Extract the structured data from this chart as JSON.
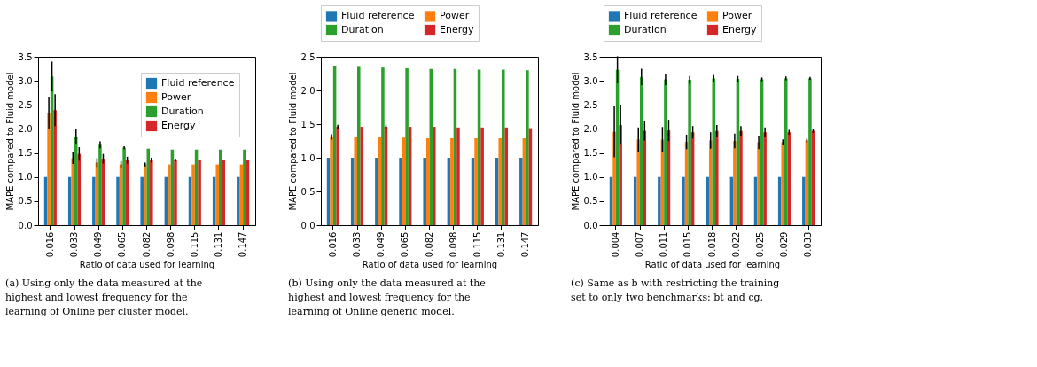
{
  "chart_data": [
    {
      "type": "bar",
      "xlabel": "Ratio of data used for learning",
      "ylabel": "MAPE compared to Fluid model",
      "categories": [
        "0.016",
        "0.033",
        "0.049",
        "0.065",
        "0.082",
        "0.098",
        "0.115",
        "0.131",
        "0.147"
      ],
      "series": [
        {
          "name": "Fluid reference",
          "color": "#1f77b4",
          "values": [
            1.0,
            1.0,
            1.0,
            1.0,
            1.0,
            1.0,
            1.0,
            1.0,
            1.0
          ]
        },
        {
          "name": "Power",
          "color": "#ff7f0e",
          "values": [
            2.33,
            1.39,
            1.3,
            1.26,
            1.26,
            1.26,
            1.26,
            1.26,
            1.26
          ],
          "errors": [
            0.34,
            0.12,
            0.09,
            0.07,
            0.04,
            null,
            null,
            null,
            null
          ]
        },
        {
          "name": "Duration",
          "color": "#2ca02c",
          "values": [
            3.09,
            1.84,
            1.67,
            1.61,
            1.59,
            1.57,
            1.57,
            1.57,
            1.57
          ],
          "errors": [
            0.31,
            0.16,
            0.07,
            0.03,
            null,
            null,
            null,
            null,
            null
          ]
        },
        {
          "name": "Energy",
          "color": "#d62728",
          "values": [
            2.39,
            1.48,
            1.38,
            1.35,
            1.35,
            1.35,
            1.35,
            1.35,
            1.35
          ],
          "errors": [
            0.33,
            0.14,
            0.1,
            0.07,
            0.05,
            0.03,
            null,
            null,
            null
          ]
        }
      ],
      "ylim": [
        0,
        3.5
      ],
      "yticks": [
        {
          "value": 0,
          "label": "0.0"
        },
        0.5,
        {
          "value": 1,
          "label": "1.0"
        },
        1.5,
        {
          "value": 2,
          "label": "2.0"
        },
        2.5,
        {
          "value": 3,
          "label": "3.0"
        },
        3.5
      ],
      "grid": false,
      "legend": "top right",
      "annotations": [
        "(a) Using only the data measured at the highest and lowest frequency for the learning of Online per cluster model."
      ]
    },
    {
      "type": "bar",
      "xlabel": "Ratio of data used for learning",
      "ylabel": "MAPE compared to Fluid model",
      "categories": [
        "0.016",
        "0.033",
        "0.049",
        "0.065",
        "0.082",
        "0.098",
        "0.115",
        "0.131",
        "0.147"
      ],
      "series": [
        {
          "name": "Fluid reference",
          "color": "#1f77b4",
          "values": [
            1.0,
            1.0,
            1.0,
            1.0,
            1.0,
            1.0,
            1.0,
            1.0,
            1.0
          ]
        },
        {
          "name": "Power",
          "color": "#ff7f0e",
          "values": [
            1.31,
            1.31,
            1.31,
            1.3,
            1.29,
            1.29,
            1.29,
            1.29,
            1.29
          ],
          "errors": [
            0.04,
            null,
            null,
            null,
            null,
            null,
            null,
            null,
            null
          ]
        },
        {
          "name": "Duration",
          "color": "#2ca02c",
          "values": [
            2.37,
            2.35,
            2.34,
            2.33,
            2.32,
            2.32,
            2.31,
            2.31,
            2.3
          ]
        },
        {
          "name": "Energy",
          "color": "#d62728",
          "values": [
            1.46,
            1.46,
            1.46,
            1.46,
            1.46,
            1.45,
            1.45,
            1.45,
            1.44
          ],
          "errors": [
            0.03,
            null,
            0.03,
            null,
            null,
            null,
            null,
            null,
            null
          ]
        }
      ],
      "ylim": [
        0,
        2.5
      ],
      "yticks": [
        {
          "value": 0,
          "label": "0.0"
        },
        0.5,
        {
          "value": 1,
          "label": "1.0"
        },
        1.5,
        {
          "value": 2,
          "label": "2.0"
        },
        2.5
      ],
      "grid": false,
      "legend": "top",
      "annotations": [
        "(b) Using only the data measured at the highest and lowest frequency for the learning of Online generic model."
      ]
    },
    {
      "type": "bar",
      "xlabel": "Ratio of data used for learning",
      "ylabel": "MAPE compared to Fluid model",
      "categories": [
        "0.004",
        "0.007",
        "0.011",
        "0.015",
        "0.018",
        "0.022",
        "0.025",
        "0.029",
        "0.033"
      ],
      "series": [
        {
          "name": "Fluid reference",
          "color": "#1f77b4",
          "values": [
            1.0,
            1.0,
            1.0,
            1.0,
            1.0,
            1.0,
            1.0,
            1.0,
            1.0
          ]
        },
        {
          "name": "Power",
          "color": "#ff7f0e",
          "values": [
            1.94,
            1.78,
            1.78,
            1.73,
            1.76,
            1.75,
            1.72,
            1.72,
            1.76
          ],
          "errors": [
            0.53,
            0.25,
            0.26,
            0.15,
            0.17,
            0.15,
            0.14,
            0.06,
            0.04
          ]
        },
        {
          "name": "Duration",
          "color": "#2ca02c",
          "values": [
            3.23,
            3.08,
            3.03,
            3.02,
            3.05,
            3.04,
            3.03,
            3.05,
            3.05
          ],
          "errors": [
            0.28,
            0.17,
            0.12,
            0.08,
            0.07,
            0.06,
            0.04,
            0.04,
            0.03
          ]
        },
        {
          "name": "Energy",
          "color": "#d62728",
          "values": [
            2.08,
            1.96,
            1.97,
            1.93,
            1.96,
            1.96,
            1.93,
            1.93,
            1.96
          ],
          "errors": [
            0.41,
            0.2,
            0.22,
            0.13,
            0.12,
            0.1,
            0.1,
            0.05,
            0.04
          ]
        }
      ],
      "ylim": [
        0,
        3.5
      ],
      "yticks": [
        {
          "value": 0,
          "label": "0.0"
        },
        0.5,
        {
          "value": 1,
          "label": "1.0"
        },
        1.5,
        {
          "value": 2,
          "label": "2.0"
        },
        2.5,
        {
          "value": 3,
          "label": "3.0"
        },
        3.5
      ],
      "grid": false,
      "legend": "top",
      "annotations": [
        "(c) Same as b with restricting the training set to only two benchmarks: bt and cg."
      ]
    }
  ]
}
